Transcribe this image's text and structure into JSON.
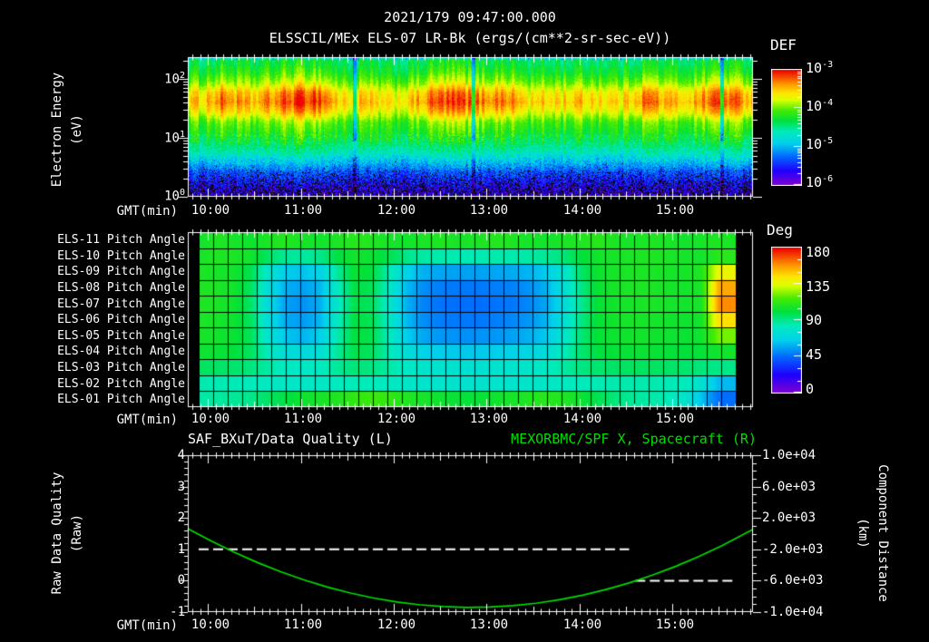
{
  "header": {
    "datetime": "2021/179 09:47:00.000",
    "instrument": "ELSSCIL/MEx ELS-07 LR-Bk  (ergs/(cm**2-sr-sec-eV))"
  },
  "colors": {
    "background": "#000000",
    "foreground": "#ffffff",
    "green_accent": "#00dd00"
  },
  "time_axis": {
    "label": "GMT(min)",
    "tick_labels": [
      "10:00",
      "11:00",
      "12:00",
      "13:00",
      "14:00",
      "15:00"
    ],
    "start": "09:47",
    "end": "15:52",
    "t_range_min": [
      0,
      365
    ],
    "first_hour_tick_min": 13,
    "major_every_min": 60,
    "medium_every_min": 30,
    "minor_every_min": 5
  },
  "chart_data": [
    {
      "type": "heatmap",
      "name": "electron-energy-spectrogram",
      "title": "ELSSCIL/MEx ELS-07 LR-Bk",
      "units": "ergs/(cm**2-sr-sec-eV)",
      "y_label_lines": [
        "Electron Energy",
        "(eV)"
      ],
      "y_ticks": [
        {
          "b": "10",
          "e": "2"
        },
        {
          "b": "10",
          "e": "1"
        },
        {
          "b": "10",
          "e": "0"
        }
      ],
      "y_log_range": [
        0,
        2.37
      ],
      "value_log_range": [
        -6,
        -3
      ],
      "colorbar": {
        "title": "DEF",
        "ticks": [
          {
            "b": "10",
            "e": "-3"
          },
          {
            "b": "10",
            "e": "-4"
          },
          {
            "b": "10",
            "e": "-5"
          },
          {
            "b": "10",
            "e": "-6"
          }
        ]
      },
      "time_bin_centers_min": [
        8,
        23,
        38,
        53,
        68,
        84,
        99,
        114,
        129,
        144,
        160,
        175,
        190,
        205,
        220,
        236,
        251,
        266,
        281,
        296,
        312,
        327,
        342,
        357
      ],
      "energy_rows_ev": [
        193,
        131,
        89,
        60,
        41,
        28,
        19,
        12.9,
        8.7,
        5.9,
        4.0,
        2.7,
        1.85,
        1.25
      ],
      "gap_fractions": [
        0.294,
        0.505,
        0.944
      ],
      "values": [
        [
          -4.4,
          -4.28,
          -4.38,
          -4.32,
          -4.22,
          -4.2,
          -4.42,
          -4.38,
          -4.46,
          -4.4,
          -4.26,
          -4.24,
          -4.3,
          -4.28,
          -4.42,
          -4.4,
          -4.38,
          -4.4,
          -4.42,
          -4.26,
          -4.38,
          -4.36,
          -4.22,
          -4.32
        ],
        [
          -4.25,
          -4.1,
          -4.23,
          -4.15,
          -4.03,
          -4.0,
          -4.28,
          -4.23,
          -4.33,
          -4.25,
          -4.08,
          -4.05,
          -4.13,
          -4.1,
          -4.28,
          -4.25,
          -4.23,
          -4.25,
          -4.28,
          -4.08,
          -4.23,
          -4.2,
          -4.03,
          -4.15
        ],
        [
          -4.0,
          -3.82,
          -3.97,
          -3.88,
          -3.73,
          -3.7,
          -4.03,
          -3.97,
          -4.09,
          -4.0,
          -3.79,
          -3.76,
          -3.85,
          -3.82,
          -4.03,
          -4.0,
          -3.97,
          -4.0,
          -4.03,
          -3.79,
          -3.97,
          -3.94,
          -3.73,
          -3.88
        ],
        [
          -3.65,
          -3.38,
          -3.61,
          -3.47,
          -3.25,
          -3.2,
          -3.7,
          -3.61,
          -3.79,
          -3.65,
          -3.34,
          -3.29,
          -3.43,
          -3.38,
          -3.7,
          -3.65,
          -3.61,
          -3.65,
          -3.7,
          -3.34,
          -3.61,
          -3.56,
          -3.25,
          -3.47
        ],
        [
          -3.53,
          -3.24,
          -3.48,
          -3.34,
          -3.1,
          -3.05,
          -3.57,
          -3.48,
          -3.67,
          -3.53,
          -3.19,
          -3.15,
          -3.29,
          -3.24,
          -3.57,
          -3.53,
          -3.48,
          -3.53,
          -3.57,
          -3.19,
          -3.48,
          -3.43,
          -3.1,
          -3.34
        ],
        [
          -3.75,
          -3.51,
          -3.71,
          -3.59,
          -3.39,
          -3.35,
          -3.79,
          -3.71,
          -3.87,
          -3.75,
          -3.47,
          -3.43,
          -3.55,
          -3.51,
          -3.79,
          -3.75,
          -3.71,
          -3.75,
          -3.79,
          -3.47,
          -3.71,
          -3.67,
          -3.39,
          -3.59
        ],
        [
          -4.1,
          -3.95,
          -4.08,
          -4.0,
          -3.88,
          -3.85,
          -4.13,
          -4.08,
          -4.18,
          -4.1,
          -3.93,
          -3.9,
          -3.98,
          -3.95,
          -4.13,
          -4.1,
          -4.08,
          -4.1,
          -4.13,
          -3.93,
          -4.08,
          -4.05,
          -3.88,
          -4.0
        ],
        [
          -4.23,
          -4.12,
          -4.21,
          -4.16,
          -4.07,
          -4.05,
          -4.24,
          -4.21,
          -4.28,
          -4.23,
          -4.1,
          -4.09,
          -4.14,
          -4.12,
          -4.24,
          -4.23,
          -4.21,
          -4.23,
          -4.24,
          -4.1,
          -4.21,
          -4.19,
          -4.07,
          -4.16
        ],
        [
          -4.4,
          -4.31,
          -4.39,
          -4.34,
          -4.27,
          -4.25,
          -4.42,
          -4.39,
          -4.45,
          -4.4,
          -4.3,
          -4.28,
          -4.33,
          -4.31,
          -4.42,
          -4.4,
          -4.39,
          -4.4,
          -4.42,
          -4.3,
          -4.39,
          -4.37,
          -4.27,
          -4.34
        ],
        [
          -4.68,
          -4.6,
          -4.66,
          -4.63,
          -4.56,
          -4.55,
          -4.69,
          -4.66,
          -4.71,
          -4.68,
          -4.59,
          -4.58,
          -4.61,
          -4.6,
          -4.69,
          -4.68,
          -4.66,
          -4.68,
          -4.69,
          -4.59,
          -4.66,
          -4.65,
          -4.56,
          -4.63
        ],
        [
          -5.0,
          -4.94,
          -4.99,
          -4.96,
          -4.91,
          -4.9,
          -5.01,
          -4.99,
          -5.03,
          -5.0,
          -4.93,
          -4.92,
          -4.95,
          -4.94,
          -5.01,
          -5.0,
          -4.99,
          -5.0,
          -5.01,
          -4.93,
          -4.99,
          -4.98,
          -4.91,
          -4.96
        ],
        [
          -5.38,
          -5.33,
          -5.37,
          -5.35,
          -5.31,
          -5.3,
          -5.38,
          -5.37,
          -5.4,
          -5.38,
          -5.32,
          -5.32,
          -5.34,
          -5.33,
          -5.38,
          -5.38,
          -5.37,
          -5.38,
          -5.38,
          -5.32,
          -5.37,
          -5.36,
          -5.31,
          -5.35
        ],
        [
          -5.6,
          -5.57,
          -5.59,
          -5.58,
          -5.56,
          -5.55,
          -5.61,
          -5.59,
          -5.62,
          -5.6,
          -5.57,
          -5.56,
          -5.58,
          -5.57,
          -5.61,
          -5.6,
          -5.59,
          -5.6,
          -5.61,
          -5.57,
          -5.59,
          -5.59,
          -5.56,
          -5.58
        ],
        [
          -5.78,
          -5.76,
          -5.77,
          -5.77,
          -5.75,
          -5.75,
          -5.78,
          -5.77,
          -5.78,
          -5.78,
          -5.76,
          -5.76,
          -5.76,
          -5.76,
          -5.78,
          -5.78,
          -5.77,
          -5.78,
          -5.78,
          -5.76,
          -5.77,
          -5.77,
          -5.75,
          -5.77
        ]
      ]
    },
    {
      "type": "heatmap",
      "name": "pitch-angle-grid",
      "unit": "deg",
      "value_range": [
        0,
        180
      ],
      "row_labels": [
        "ELS-11 Pitch Angle",
        "ELS-10 Pitch Angle",
        "ELS-09 Pitch Angle",
        "ELS-08 Pitch Angle",
        "ELS-07 Pitch Angle",
        "ELS-06 Pitch Angle",
        "ELS-05 Pitch Angle",
        "ELS-04 Pitch Angle",
        "ELS-03 Pitch Angle",
        "ELS-02 Pitch Angle",
        "ELS-01 Pitch Angle"
      ],
      "colorbar": {
        "title": "Deg",
        "ticks": [
          "180",
          "135",
          "90",
          "45",
          "0"
        ]
      },
      "column_minutes": [
        6,
        17,
        29,
        40,
        51,
        63,
        74,
        86,
        97,
        108,
        120,
        131,
        143,
        154,
        165,
        177,
        188,
        200,
        211,
        222,
        234,
        245,
        257,
        268,
        279,
        291,
        302,
        314,
        325,
        336,
        348,
        359
      ],
      "values": [
        [
          105,
          108,
          106,
          104,
          107,
          109,
          106,
          105,
          107,
          110,
          108,
          106,
          105,
          107,
          108,
          106,
          107,
          109,
          108,
          106,
          105,
          107,
          108,
          110,
          107,
          106,
          108,
          107,
          105,
          106,
          108,
          106
        ],
        [
          106,
          108,
          107,
          105,
          95,
          88,
          87,
          90,
          100,
          105,
          103,
          98,
          90,
          86,
          85,
          84,
          84,
          85,
          85,
          86,
          88,
          92,
          100,
          105,
          106,
          107,
          108,
          107,
          106,
          105,
          110,
          110
        ],
        [
          107,
          106,
          105,
          98,
          78,
          64,
          62,
          67,
          88,
          103,
          100,
          84,
          66,
          58,
          56,
          55,
          55,
          56,
          57,
          59,
          64,
          76,
          94,
          104,
          106,
          107,
          107,
          106,
          106,
          108,
          138,
          138
        ],
        [
          108,
          107,
          105,
          96,
          72,
          58,
          55,
          60,
          82,
          100,
          97,
          80,
          60,
          51,
          48,
          47,
          47,
          48,
          49,
          52,
          58,
          72,
          90,
          103,
          106,
          107,
          107,
          106,
          105,
          107,
          155,
          155
        ],
        [
          108,
          107,
          104,
          95,
          70,
          55,
          52,
          58,
          80,
          99,
          96,
          78,
          58,
          49,
          46,
          45,
          45,
          46,
          47,
          50,
          56,
          70,
          88,
          102,
          105,
          106,
          107,
          106,
          105,
          106,
          160,
          160
        ],
        [
          107,
          106,
          104,
          96,
          72,
          57,
          54,
          60,
          82,
          100,
          97,
          80,
          60,
          51,
          48,
          47,
          47,
          48,
          50,
          53,
          59,
          73,
          90,
          102,
          105,
          106,
          106,
          105,
          104,
          105,
          145,
          145
        ],
        [
          106,
          105,
          103,
          97,
          76,
          62,
          59,
          65,
          85,
          101,
          98,
          82,
          64,
          56,
          53,
          52,
          52,
          53,
          55,
          58,
          63,
          77,
          92,
          102,
          104,
          105,
          105,
          104,
          103,
          104,
          122,
          122
        ],
        [
          104,
          103,
          101,
          96,
          82,
          72,
          70,
          74,
          88,
          99,
          96,
          84,
          72,
          66,
          64,
          63,
          63,
          64,
          66,
          68,
          72,
          82,
          93,
          100,
          102,
          103,
          103,
          102,
          101,
          102,
          105,
          105
        ],
        [
          96,
          95,
          94,
          92,
          86,
          81,
          80,
          82,
          88,
          93,
          91,
          86,
          80,
          77,
          76,
          75,
          75,
          76,
          77,
          78,
          81,
          86,
          91,
          94,
          95,
          96,
          96,
          95,
          94,
          92,
          90,
          90
        ],
        [
          85,
          84,
          84,
          83,
          81,
          79,
          79,
          80,
          82,
          84,
          83,
          81,
          79,
          77,
          77,
          76,
          76,
          77,
          77,
          78,
          79,
          81,
          83,
          84,
          85,
          85,
          85,
          84,
          83,
          75,
          60,
          60
        ],
        [
          86,
          87,
          88,
          90,
          95,
          100,
          104,
          106,
          108,
          112,
          114,
          112,
          108,
          106,
          104,
          102,
          102,
          104,
          106,
          108,
          110,
          108,
          104,
          98,
          92,
          88,
          86,
          84,
          78,
          62,
          45,
          45
        ]
      ]
    },
    {
      "type": "line",
      "name": "quality-and-spacecraft-x",
      "titles": {
        "left": "SAF_BXuT/Data Quality (L)",
        "right": "MEXORBMC/SPF X, Spacecraft (R)"
      },
      "y_left": {
        "label_lines": [
          "Raw Data Quality",
          "(Raw)"
        ],
        "ticks": [
          "4",
          "3",
          "2",
          "1",
          "0",
          "-1"
        ],
        "min": -1,
        "max": 4
      },
      "y_right": {
        "label_lines": [
          "Component Distance",
          "(km)"
        ],
        "ticks": [
          "1.0e+04",
          "6.0e+03",
          "2.0e+03",
          "-2.0e+03",
          "-6.0e+03",
          "-1.0e+04"
        ],
        "min": -10000,
        "max": 10000
      },
      "series": [
        {
          "name": "SAF_BXuT/Data Quality",
          "axis": "left",
          "style": "dashed",
          "color": "#ffffff",
          "segments": [
            [
              [
                7,
                1
              ],
              [
                285,
                1
              ]
            ],
            [
              [
                289,
                0
              ],
              [
                352,
                0
              ]
            ]
          ]
        },
        {
          "name": "MEXORBMC/SPF X, Spacecraft",
          "axis": "right",
          "style": "solid",
          "color": "#00dd00",
          "points": [
            [
              0,
              647
            ],
            [
              15,
              -933
            ],
            [
              30,
              -2377
            ],
            [
              45,
              -3687
            ],
            [
              60,
              -4861
            ],
            [
              75,
              -5901
            ],
            [
              90,
              -6805
            ],
            [
              105,
              -7575
            ],
            [
              120,
              -8209
            ],
            [
              135,
              -8709
            ],
            [
              150,
              -9073
            ],
            [
              165,
              -9303
            ],
            [
              180,
              -9397
            ],
            [
              195,
              -9357
            ],
            [
              210,
              -9181
            ],
            [
              225,
              -8871
            ],
            [
              240,
              -8425
            ],
            [
              255,
              -7845
            ],
            [
              270,
              -7129
            ],
            [
              285,
              -6279
            ],
            [
              300,
              -5293
            ],
            [
              315,
              -4173
            ],
            [
              330,
              -2917
            ],
            [
              345,
              -1527
            ],
            [
              365,
              537
            ]
          ]
        }
      ]
    }
  ]
}
